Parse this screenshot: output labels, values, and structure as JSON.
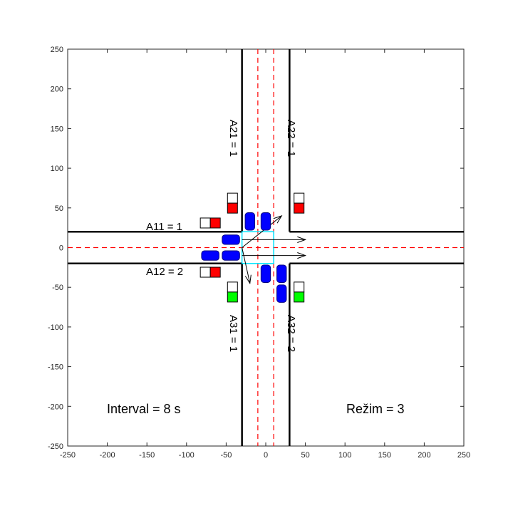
{
  "chart_data": {
    "type": "diagram",
    "xlim": [
      -250,
      250
    ],
    "ylim": [
      -250,
      250
    ],
    "x_ticks": [
      "-250",
      "-200",
      "-150",
      "-100",
      "-50",
      "0",
      "50",
      "100",
      "150",
      "200",
      "250"
    ],
    "y_ticks": [
      "250",
      "200",
      "150",
      "100",
      "50",
      "0",
      "-50",
      "-100",
      "-150",
      "-200",
      "-250"
    ],
    "road": {
      "horizontal_edges_y": [
        20,
        -20
      ],
      "vertical_edges_x": [
        -30,
        30
      ],
      "horizontal_centerline_y": 0,
      "vertical_lane_lines_x": [
        -10,
        10
      ]
    },
    "lane_labels": {
      "a11": "A11 = 1",
      "a12": "A12 = 2",
      "a21": "A21 = 1",
      "a22": "A22 = 1",
      "a31": "A31 = 1",
      "a32": "A32 = 2"
    },
    "traffic_lights": [
      {
        "id": "light-a11",
        "x": -70,
        "y": 31,
        "orientation": "horizontal",
        "state": "red"
      },
      {
        "id": "light-a12",
        "x": -70,
        "y": -31,
        "orientation": "horizontal",
        "state": "red"
      },
      {
        "id": "light-a21",
        "x": -42,
        "y": 56,
        "orientation": "vertical",
        "state": "red"
      },
      {
        "id": "light-a22",
        "x": 42,
        "y": 56,
        "orientation": "vertical",
        "state": "red"
      },
      {
        "id": "light-a31",
        "x": -42,
        "y": -56,
        "orientation": "vertical",
        "state": "green"
      },
      {
        "id": "light-a32",
        "x": 42,
        "y": -56,
        "orientation": "vertical",
        "state": "green"
      }
    ],
    "vehicles": [
      {
        "x": -44,
        "y": 10,
        "orientation": "horizontal"
      },
      {
        "x": -44,
        "y": -10,
        "orientation": "horizontal"
      },
      {
        "x": -70,
        "y": -10,
        "orientation": "horizontal"
      },
      {
        "x": -20,
        "y": 33,
        "orientation": "vertical"
      },
      {
        "x": 0,
        "y": 33,
        "orientation": "vertical"
      },
      {
        "x": 0,
        "y": -33,
        "orientation": "vertical"
      },
      {
        "x": 20,
        "y": -33,
        "orientation": "vertical"
      },
      {
        "x": 20,
        "y": -58,
        "orientation": "vertical"
      }
    ],
    "conflict_zone": {
      "x": [
        -30,
        10
      ],
      "y": [
        -20,
        20
      ]
    },
    "arrows": [
      {
        "from": [
          -30,
          10
        ],
        "to": [
          50,
          10
        ]
      },
      {
        "from": [
          -30,
          -10
        ],
        "to": [
          50,
          -10
        ]
      },
      {
        "from": [
          -30,
          0
        ],
        "to": [
          20,
          40
        ]
      },
      {
        "from": [
          -30,
          0
        ],
        "to": [
          -20,
          -45
        ]
      }
    ],
    "interval_text": "Interval = 8 s",
    "mode_text": "Režim = 3"
  },
  "colors": {
    "road_edge": "#000000",
    "lane_line": "#ff0000",
    "vehicle": "#0000ff",
    "conflict_zone": "#00e5ff",
    "red": "#ff0000",
    "green": "#00ff00"
  }
}
